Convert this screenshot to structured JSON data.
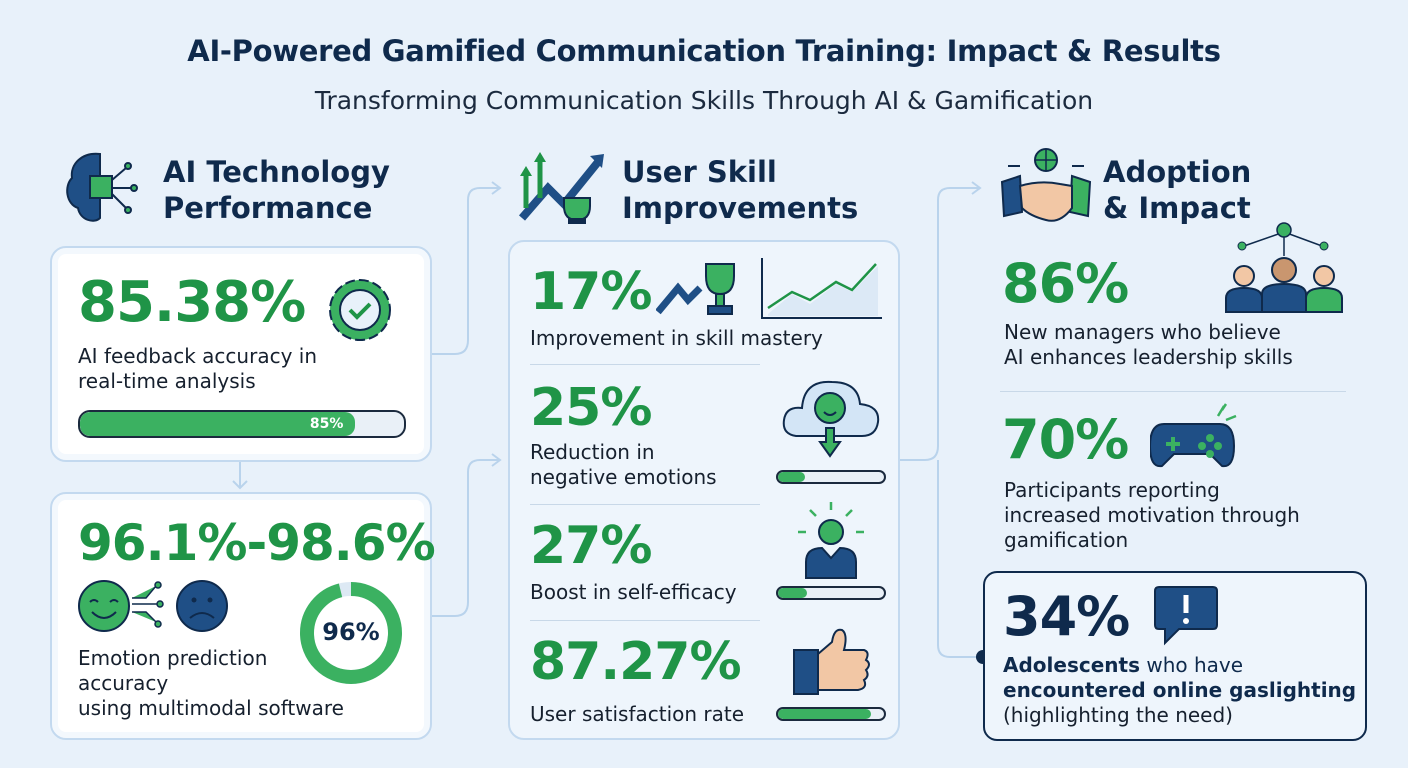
{
  "title": "AI-Powered Gamified Communication Training: Impact & Results",
  "subtitle": "Transforming Communication Skills Through AI & Gamification",
  "colors": {
    "green": "#1f9447",
    "navy": "#0f2a4c",
    "background": "#e8f1fa"
  },
  "col1": {
    "heading": [
      "AI Technology",
      "Performance"
    ],
    "icon": "brain-circuit-icon",
    "stat1": {
      "value": "85.38%",
      "desc": [
        "AI feedback accuracy in",
        "real-time analysis"
      ],
      "icon": "gear-check-icon",
      "bar_label": "85%",
      "bar_percent": 85
    },
    "stat2": {
      "value": "96.1%-98.6%",
      "desc": [
        "Emotion prediction",
        "accuracy",
        "using multimodal software"
      ],
      "icon": "emotion-faces-icon",
      "ring_label": "96%",
      "ring_percent": 96
    }
  },
  "col2": {
    "heading": [
      "User Skill",
      "Improvements"
    ],
    "icon": "growth-trophy-icon",
    "stats": [
      {
        "value": "17%",
        "desc": [
          "Improvement in skill mastery"
        ],
        "icon": "trophy-chart-icon"
      },
      {
        "value": "25%",
        "desc": [
          "Reduction in",
          "negative emotions"
        ],
        "icon": "cloud-smile-icon",
        "bar_percent": 25
      },
      {
        "value": "27%",
        "desc": [
          "Boost in self-efficacy"
        ],
        "icon": "person-idea-icon",
        "bar_percent": 27
      },
      {
        "value": "87.27%",
        "desc": [
          "User satisfaction rate"
        ],
        "icon": "thumbs-up-icon",
        "bar_percent": 87.27
      }
    ]
  },
  "col3": {
    "heading": [
      "Adoption",
      "& Impact"
    ],
    "icon": "handshake-globe-icon",
    "stats": [
      {
        "value": "86%",
        "desc": [
          "New managers who believe",
          "AI enhances leadership skills"
        ],
        "icon": "team-network-icon"
      },
      {
        "value": "70%",
        "desc": [
          "Participants reporting",
          "increased motivation through",
          "gamification"
        ],
        "icon": "gamepad-icon"
      },
      {
        "value": "34%",
        "desc_bold1": "Adolescents",
        "desc_rest1": " who have",
        "desc_bold2": "encountered online gaslighting",
        "desc3": "(highlighting the need)",
        "icon": "alert-speech-icon"
      }
    ]
  }
}
